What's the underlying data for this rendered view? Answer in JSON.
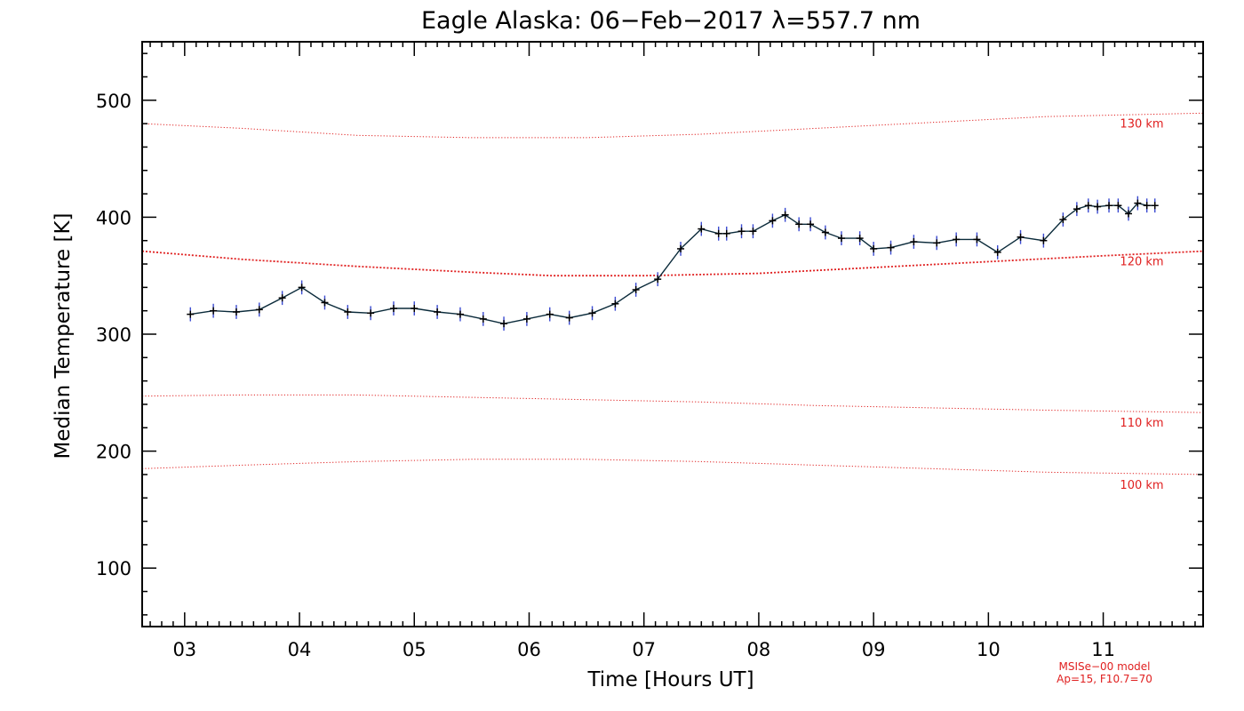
{
  "chart_data": {
    "type": "line",
    "title": "Eagle Alaska: 06−Feb−2017 λ=557.7 nm",
    "xlabel": "Time [Hours UT]",
    "ylabel": "Median Temperature [K]",
    "xlim": [
      2.63,
      11.87
    ],
    "ylim": [
      50,
      550
    ],
    "x_ticks": [
      3,
      4,
      5,
      6,
      7,
      8,
      9,
      10,
      11
    ],
    "x_tick_labels": [
      "03",
      "04",
      "05",
      "06",
      "07",
      "08",
      "09",
      "10",
      "11"
    ],
    "y_ticks": [
      100,
      200,
      300,
      400,
      500
    ],
    "y_tick_labels": [
      "100",
      "200",
      "300",
      "400",
      "500"
    ],
    "grid": false,
    "series": [
      {
        "name": "",
        "color": "#0a2a3a",
        "marker_color": "#000000",
        "errorbar_color": "#3a4ad0",
        "error_k": 6,
        "x": [
          3.05,
          3.25,
          3.45,
          3.65,
          3.85,
          4.02,
          4.22,
          4.42,
          4.62,
          4.82,
          5.0,
          5.2,
          5.4,
          5.6,
          5.78,
          5.98,
          6.18,
          6.35,
          6.55,
          6.75,
          6.93,
          7.12,
          7.32,
          7.5,
          7.65,
          7.72,
          7.85,
          7.95,
          8.12,
          8.23,
          8.35,
          8.45,
          8.58,
          8.72,
          8.88,
          9.0,
          9.15,
          9.35,
          9.55,
          9.72,
          9.9,
          10.08,
          10.28,
          10.48,
          10.65,
          10.77,
          10.87,
          10.95,
          11.05,
          11.13,
          11.22,
          11.3,
          11.38,
          11.45
        ],
        "y": [
          317,
          320,
          319,
          321,
          331,
          340,
          327,
          319,
          318,
          322,
          322,
          319,
          317,
          313,
          309,
          313,
          317,
          314,
          318,
          326,
          338,
          347,
          373,
          390,
          386,
          386,
          388,
          388,
          397,
          402,
          394,
          394,
          387,
          382,
          382,
          373,
          374,
          379,
          378,
          381,
          381,
          370,
          383,
          380,
          398,
          407,
          410,
          409,
          410,
          410,
          403,
          412,
          410,
          410
        ]
      }
    ],
    "model_curves": [
      {
        "label": "130 km",
        "color": "#e02020",
        "x": [
          2.63,
          3.5,
          4.5,
          5.5,
          6.5,
          7.5,
          8.5,
          9.5,
          10.5,
          11.87
        ],
        "y": [
          480,
          476,
          470,
          468,
          468,
          471,
          476,
          481,
          486,
          489
        ]
      },
      {
        "label": "120 km",
        "color": "#e02020",
        "x": [
          2.63,
          3.5,
          4.5,
          5.5,
          6.2,
          7.0,
          8.0,
          9.0,
          10.0,
          11.0,
          11.87
        ],
        "y": [
          371,
          364,
          358,
          353,
          350,
          350,
          352,
          357,
          362,
          367,
          371
        ]
      },
      {
        "label": "110 km",
        "color": "#e02020",
        "x": [
          2.63,
          3.5,
          4.5,
          5.5,
          6.5,
          7.5,
          8.5,
          9.5,
          10.5,
          11.87
        ],
        "y": [
          247,
          248,
          248,
          246,
          244,
          242,
          239,
          237,
          235,
          233
        ]
      },
      {
        "label": "100 km",
        "color": "#e02020",
        "x": [
          2.63,
          3.5,
          4.5,
          5.5,
          6.5,
          7.5,
          8.5,
          9.5,
          10.5,
          11.87
        ],
        "y": [
          185,
          188,
          191,
          193,
          193,
          191,
          188,
          185,
          182,
          180
        ]
      }
    ],
    "model_note": [
      "MSISe−00 model",
      "Ap=15, F10.7=70"
    ],
    "accent_color": "#e02020"
  }
}
